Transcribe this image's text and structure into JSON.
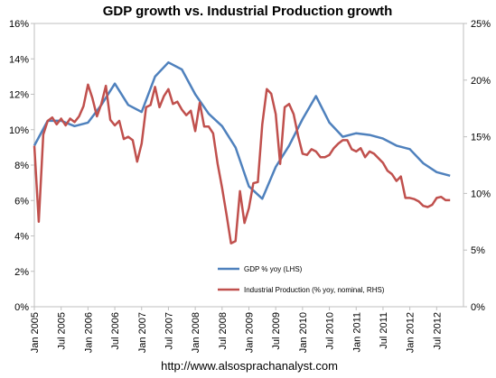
{
  "chart_data": {
    "type": "line",
    "title": "GDP growth vs. Industrial Production growth",
    "source": "http://www.alsosprachanalyst.com",
    "x_ticks": [
      "Jan 2005",
      "Jul 2005",
      "Jan 2006",
      "Jul 2006",
      "Jan 2007",
      "Jul 2007",
      "Jan 2008",
      "Jul 2008",
      "Jan 2009",
      "Jul 2009",
      "Jan 2010",
      "Jul 2010",
      "Jan 2011",
      "Jul 2011",
      "Jan 2012",
      "Jul 2012"
    ],
    "y_left_ticks": [
      "0%",
      "2%",
      "4%",
      "6%",
      "8%",
      "10%",
      "12%",
      "14%",
      "16%"
    ],
    "y_right_ticks": [
      "0%",
      "5%",
      "10%",
      "15%",
      "20%",
      "25%"
    ],
    "y_left_range": [
      0,
      16
    ],
    "y_right_range": [
      0,
      25
    ],
    "x_range": [
      "Jan 2005",
      "Dec 2012"
    ],
    "legend_position": "lower-center",
    "grid": false,
    "series": [
      {
        "name": "GDP % yoy (LHS)",
        "axis": "left",
        "color": "#4f81bd",
        "x": [
          0,
          3,
          6,
          9,
          12,
          15,
          18,
          21,
          24,
          27,
          30,
          33,
          36,
          39,
          42,
          45,
          48,
          51,
          54,
          57,
          60,
          63,
          66,
          69,
          72,
          75,
          78,
          81,
          84,
          87,
          90,
          93
        ],
        "values": [
          9.1,
          10.5,
          10.5,
          10.2,
          10.4,
          11.4,
          12.6,
          11.4,
          11.0,
          13.0,
          13.8,
          13.4,
          12.0,
          10.9,
          10.2,
          9.0,
          6.8,
          6.1,
          7.9,
          9.1,
          10.6,
          11.9,
          10.4,
          9.6,
          9.8,
          9.7,
          9.5,
          9.1,
          8.9,
          8.1,
          7.6,
          7.4
        ]
      },
      {
        "name": "Industrial Production (% yoy, nominal, RHS)",
        "axis": "right",
        "color": "#c0504d",
        "x": [
          0,
          1,
          2,
          3,
          4,
          5,
          6,
          7,
          8,
          9,
          10,
          11,
          12,
          13,
          14,
          15,
          16,
          17,
          18,
          19,
          20,
          21,
          22,
          23,
          24,
          25,
          26,
          27,
          28,
          29,
          30,
          31,
          32,
          33,
          34,
          35,
          36,
          37,
          38,
          39,
          40,
          41,
          42,
          43,
          44,
          45,
          46,
          47,
          48,
          49,
          50,
          51,
          52,
          53,
          54,
          55,
          56,
          57,
          58,
          59,
          60,
          61,
          62,
          63,
          64,
          65,
          66,
          67,
          68,
          69,
          70,
          71,
          72,
          73,
          74,
          75,
          76,
          77,
          78,
          79,
          80,
          81,
          82,
          83,
          84,
          85,
          86,
          87,
          88,
          89,
          90,
          91,
          92,
          93
        ],
        "values": [
          14.2,
          7.5,
          15.2,
          16.4,
          16.7,
          16.1,
          16.6,
          16.0,
          16.6,
          16.3,
          16.8,
          17.7,
          19.6,
          18.4,
          16.8,
          17.9,
          19.5,
          16.5,
          16.0,
          16.4,
          14.8,
          15.0,
          14.7,
          12.8,
          14.4,
          17.6,
          17.8,
          19.4,
          17.6,
          18.6,
          19.2,
          17.9,
          18.1,
          17.4,
          16.9,
          17.3,
          15.5,
          18.0,
          15.9,
          15.9,
          15.3,
          12.6,
          10.5,
          8.1,
          5.6,
          5.8,
          10.2,
          7.4,
          8.7,
          10.9,
          11.0,
          16.1,
          19.2,
          18.8,
          17.0,
          12.6,
          17.6,
          17.9,
          17.0,
          15.1,
          13.5,
          13.4,
          13.9,
          13.7,
          13.2,
          13.2,
          13.4,
          14.0,
          14.4,
          14.7,
          14.7,
          13.9,
          13.7,
          14.0,
          13.2,
          13.7,
          13.5,
          13.1,
          12.7,
          12.0,
          11.7,
          11.1,
          11.5,
          9.6,
          9.6,
          9.5,
          9.3,
          8.9,
          8.8,
          9.0,
          9.6,
          9.7,
          9.4,
          9.4
        ]
      }
    ]
  }
}
